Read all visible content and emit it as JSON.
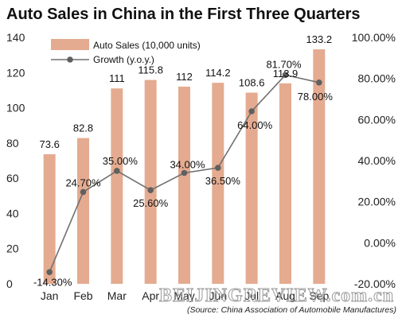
{
  "chart_data": {
    "type": "bar",
    "title": "Auto Sales in China in the First Three Quarters",
    "categories": [
      "Jan",
      "Feb",
      "Mar",
      "Apr",
      "May",
      "Jun",
      "Jul",
      "Aug",
      "Sep"
    ],
    "series": [
      {
        "name": "Auto Sales (10,000 units)",
        "type": "bar",
        "axis": "left",
        "values": [
          73.6,
          82.8,
          111,
          115.8,
          112,
          114.2,
          108.6,
          113.9,
          133.2
        ],
        "labels": [
          "73.6",
          "82.8",
          "111",
          "115.8",
          "112",
          "114.2",
          "108.6",
          "113.9",
          "133.2"
        ]
      },
      {
        "name": "Growth (y.o.y.)",
        "type": "line",
        "axis": "right",
        "values": [
          -14.3,
          24.7,
          35.0,
          25.6,
          34.0,
          36.5,
          64.0,
          81.7,
          78.0
        ],
        "labels": [
          "-14.30%",
          "24.70%",
          "35.00%",
          "25.60%",
          "34.00%",
          "36.50%",
          "64.00%",
          "81.70%",
          "78.00%"
        ]
      }
    ],
    "y_left": {
      "range": [
        0,
        140
      ],
      "ticks": [
        0,
        20,
        40,
        60,
        80,
        100,
        120,
        140
      ]
    },
    "y_right": {
      "range": [
        -20,
        100
      ],
      "ticks": [
        -20,
        0,
        20,
        40,
        60,
        80,
        100
      ],
      "tick_labels": [
        "-20.00%",
        "0.00%",
        "20.00%",
        "40.00%",
        "60.00%",
        "80.00%",
        "100.00%"
      ]
    },
    "legend_position": "top-left",
    "grid": false,
    "source": "(Source: China Association of Automobile Manufactures)",
    "watermark": "BEIJINGREVIEW.com.cn",
    "colors": {
      "bar": "#e4ab90",
      "line": "#707070",
      "marker": "#606060"
    }
  }
}
